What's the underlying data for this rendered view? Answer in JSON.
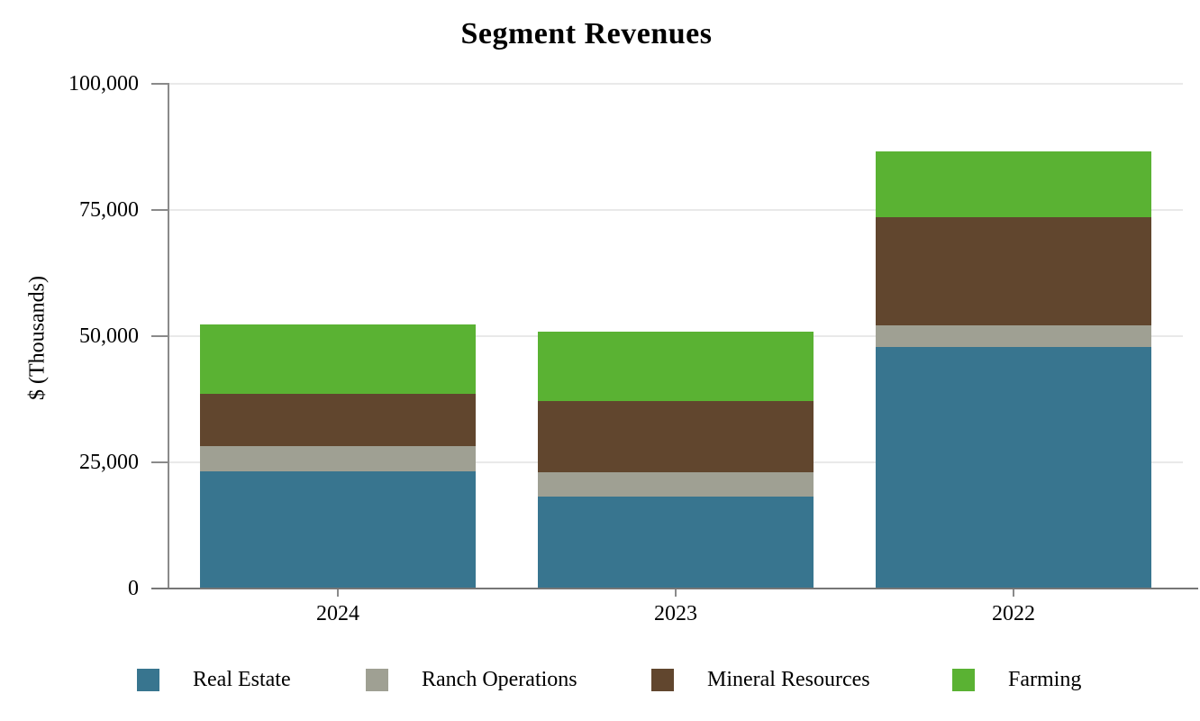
{
  "title": "Segment Revenues",
  "chart_data": {
    "type": "bar",
    "stacked": true,
    "title": "Segment Revenues",
    "xlabel": "",
    "ylabel": "$ (Thousands)",
    "categories": [
      "2024",
      "2023",
      "2022"
    ],
    "series": [
      {
        "name": "Real Estate",
        "color": "#38758F",
        "values": [
          23200,
          18200,
          47900
        ]
      },
      {
        "name": "Ranch Operations",
        "color": "#9FA093",
        "values": [
          5000,
          4800,
          4300
        ]
      },
      {
        "name": "Mineral Resources",
        "color": "#61462E",
        "values": [
          10400,
          14100,
          21400
        ]
      },
      {
        "name": "Farming",
        "color": "#5AB233",
        "values": [
          13700,
          13800,
          13000
        ]
      }
    ],
    "ylim": [
      0,
      100000
    ],
    "yticks": [
      0,
      25000,
      50000,
      75000,
      100000
    ],
    "ytick_labels": [
      "0",
      "25,000",
      "50,000",
      "75,000",
      "100,000"
    ],
    "grid": "horizontal",
    "legend_position": "bottom",
    "colors": {
      "gridline": "#E9E9E9",
      "y_axis": "#8A8A8A",
      "x_axis": "#767676",
      "tick": "#8A8A8A",
      "text": "#000000"
    }
  }
}
